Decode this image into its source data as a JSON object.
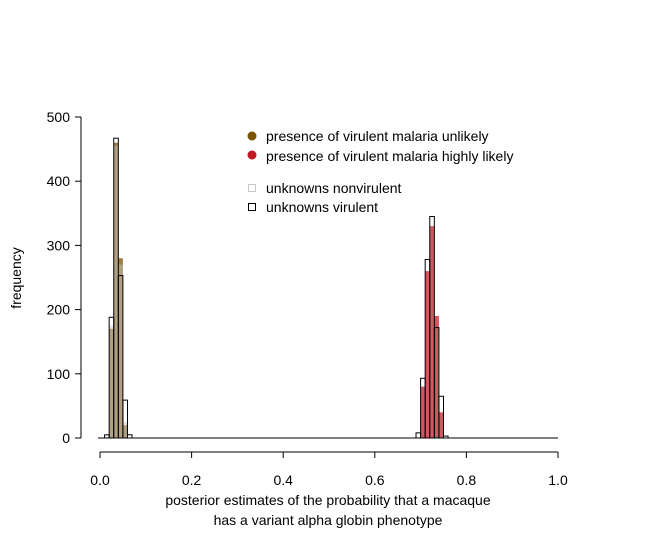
{
  "chart_data": {
    "type": "bar",
    "title": "",
    "xlabel_lines": [
      "posterior estimates of the probability that a macaque",
      "has a variant alpha globin phenotype"
    ],
    "ylabel": "frequency",
    "xlim": [
      0,
      1
    ],
    "ylim": [
      0,
      500
    ],
    "x_ticks": [
      "0.0",
      "0.2",
      "0.4",
      "0.6",
      "0.8",
      "1.0"
    ],
    "y_ticks": [
      "0",
      "100",
      "200",
      "300",
      "400",
      "500"
    ],
    "bin_width": 0.01,
    "legend_placement": "top-center",
    "legend": [
      {
        "label": "presence of virulent malaria unlikely",
        "marker": "filled-circle",
        "color": "#7a5200"
      },
      {
        "label": "presence of virulent malaria highly likely",
        "marker": "filled-circle",
        "color": "#c01a22"
      },
      {
        "label": "unknowns nonvirulent",
        "marker": "open-square",
        "color": "#c8c8c8"
      },
      {
        "label": "unknowns virulent",
        "marker": "open-square",
        "color": "#000000"
      }
    ],
    "series": [
      {
        "name": "presence of virulent malaria unlikely",
        "color": "#8a6a2a",
        "bins": [
          {
            "x0": 0.02,
            "value": 170
          },
          {
            "x0": 0.03,
            "value": 460
          },
          {
            "x0": 0.04,
            "value": 280
          },
          {
            "x0": 0.05,
            "value": 20
          }
        ]
      },
      {
        "name": "presence of virulent malaria highly likely",
        "color": "#c0303a",
        "bins": [
          {
            "x0": 0.7,
            "value": 80
          },
          {
            "x0": 0.71,
            "value": 260
          },
          {
            "x0": 0.72,
            "value": 330
          },
          {
            "x0": 0.73,
            "value": 190
          },
          {
            "x0": 0.74,
            "value": 40
          }
        ]
      },
      {
        "name": "unknowns nonvirulent",
        "color": "#c8c8c8",
        "bins": [
          {
            "x0": 0.02,
            "value": 175
          },
          {
            "x0": 0.03,
            "value": 455
          },
          {
            "x0": 0.04,
            "value": 270
          },
          {
            "x0": 0.05,
            "value": 25
          }
        ]
      },
      {
        "name": "unknowns virulent",
        "color": "#000000",
        "bins": [
          {
            "x0": 0.01,
            "value": 5
          },
          {
            "x0": 0.02,
            "value": 188
          },
          {
            "x0": 0.03,
            "value": 467
          },
          {
            "x0": 0.04,
            "value": 253
          },
          {
            "x0": 0.05,
            "value": 59
          },
          {
            "x0": 0.06,
            "value": 5
          },
          {
            "x0": 0.69,
            "value": 8
          },
          {
            "x0": 0.7,
            "value": 93
          },
          {
            "x0": 0.71,
            "value": 278
          },
          {
            "x0": 0.72,
            "value": 345
          },
          {
            "x0": 0.73,
            "value": 172
          },
          {
            "x0": 0.74,
            "value": 65
          },
          {
            "x0": 0.75,
            "value": 3
          }
        ]
      }
    ]
  }
}
